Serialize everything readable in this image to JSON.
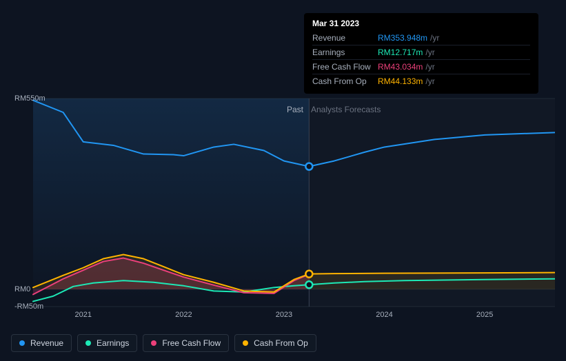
{
  "background_color": "#0d1421",
  "chart": {
    "type": "line-area",
    "y_axis": {
      "min": -50,
      "max": 550,
      "unit": "RMm",
      "ticks": [
        {
          "v": 550,
          "label": "RM550m"
        },
        {
          "v": 0,
          "label": "RM0"
        },
        {
          "v": -50,
          "label": "-RM50m"
        }
      ]
    },
    "x_axis": {
      "years": [
        "2021",
        "2022",
        "2023",
        "2024",
        "2025"
      ],
      "start_year": 2020.5,
      "end_year": 2025.7
    },
    "tooltip_x_year": 2023.25,
    "sections": {
      "past": "Past",
      "forecast": "Analysts Forecasts"
    },
    "section_label_fontsize": 12,
    "axis_fontsize": 11,
    "axis_color": "#a8b0bd",
    "grid_color": "#1e2735",
    "forecast_shade": "rgba(255,255,255,0.02)",
    "past_gradient_top": "rgba(30,80,130,0.35)",
    "past_gradient_bottom": "rgba(30,80,130,0.0)",
    "series": [
      {
        "key": "revenue",
        "label": "Revenue",
        "color": "#2196f3",
        "width": 2,
        "area": false,
        "p": [
          [
            2020.5,
            545
          ],
          [
            2020.8,
            510
          ],
          [
            2021.0,
            425
          ],
          [
            2021.3,
            415
          ],
          [
            2021.6,
            390
          ],
          [
            2021.9,
            388
          ],
          [
            2022.0,
            385
          ],
          [
            2022.3,
            410
          ],
          [
            2022.5,
            418
          ],
          [
            2022.8,
            400
          ],
          [
            2023.0,
            370
          ],
          [
            2023.25,
            354
          ],
          [
            2023.5,
            370
          ],
          [
            2023.8,
            395
          ],
          [
            2024.0,
            410
          ],
          [
            2024.5,
            432
          ],
          [
            2025.0,
            445
          ],
          [
            2025.5,
            450
          ],
          [
            2025.7,
            452
          ]
        ]
      },
      {
        "key": "earnings",
        "label": "Earnings",
        "color": "#1de9b6",
        "width": 2,
        "area": false,
        "p": [
          [
            2020.5,
            -35
          ],
          [
            2020.7,
            -20
          ],
          [
            2020.9,
            8
          ],
          [
            2021.1,
            18
          ],
          [
            2021.4,
            25
          ],
          [
            2021.7,
            20
          ],
          [
            2022.0,
            10
          ],
          [
            2022.3,
            -5
          ],
          [
            2022.6,
            -8
          ],
          [
            2022.9,
            5
          ],
          [
            2023.1,
            10
          ],
          [
            2023.25,
            13
          ],
          [
            2023.5,
            18
          ],
          [
            2023.8,
            22
          ],
          [
            2024.2,
            25
          ],
          [
            2025.0,
            28
          ],
          [
            2025.7,
            30
          ]
        ]
      },
      {
        "key": "fcf",
        "label": "Free Cash Flow",
        "color": "#ec407a",
        "width": 2,
        "area": {
          "fill": "rgba(236,64,122,0.22)"
        },
        "p": [
          [
            2020.5,
            -15
          ],
          [
            2020.8,
            30
          ],
          [
            2021.0,
            55
          ],
          [
            2021.2,
            80
          ],
          [
            2021.4,
            90
          ],
          [
            2021.6,
            75
          ],
          [
            2021.8,
            55
          ],
          [
            2022.0,
            35
          ],
          [
            2022.3,
            12
          ],
          [
            2022.6,
            -10
          ],
          [
            2022.9,
            -12
          ],
          [
            2023.1,
            25
          ],
          [
            2023.25,
            43
          ]
        ]
      },
      {
        "key": "cfo",
        "label": "Cash From Op",
        "color": "#ffb300",
        "width": 2,
        "area": {
          "fill": "rgba(255,179,0,0.10)"
        },
        "p": [
          [
            2020.5,
            5
          ],
          [
            2020.8,
            40
          ],
          [
            2021.0,
            62
          ],
          [
            2021.2,
            88
          ],
          [
            2021.4,
            100
          ],
          [
            2021.6,
            88
          ],
          [
            2021.8,
            65
          ],
          [
            2022.0,
            42
          ],
          [
            2022.3,
            20
          ],
          [
            2022.6,
            -5
          ],
          [
            2022.9,
            -8
          ],
          [
            2023.1,
            28
          ],
          [
            2023.25,
            44
          ],
          [
            2023.5,
            45
          ],
          [
            2024.0,
            46
          ],
          [
            2025.0,
            47
          ],
          [
            2025.7,
            48
          ]
        ]
      }
    ],
    "markers": [
      {
        "series": "revenue",
        "x": 2023.25,
        "y": 354,
        "color": "#2196f3"
      },
      {
        "series": "cfo",
        "x": 2023.25,
        "y": 44,
        "color": "#ffb300"
      },
      {
        "series": "earnings",
        "x": 2023.25,
        "y": 13,
        "color": "#1de9b6"
      }
    ]
  },
  "tooltip": {
    "date": "Mar 31 2023",
    "rows": [
      {
        "label": "Revenue",
        "value": "RM353.948m",
        "suffix": "/yr",
        "color": "#2196f3"
      },
      {
        "label": "Earnings",
        "value": "RM12.717m",
        "suffix": "/yr",
        "color": "#1de9b6"
      },
      {
        "label": "Free Cash Flow",
        "value": "RM43.034m",
        "suffix": "/yr",
        "color": "#ec407a"
      },
      {
        "label": "Cash From Op",
        "value": "RM44.133m",
        "suffix": "/yr",
        "color": "#ffb300"
      }
    ]
  },
  "legend": [
    {
      "key": "revenue",
      "label": "Revenue",
      "color": "#2196f3"
    },
    {
      "key": "earnings",
      "label": "Earnings",
      "color": "#1de9b6"
    },
    {
      "key": "fcf",
      "label": "Free Cash Flow",
      "color": "#ec407a"
    },
    {
      "key": "cfo",
      "label": "Cash From Op",
      "color": "#ffb300"
    }
  ]
}
